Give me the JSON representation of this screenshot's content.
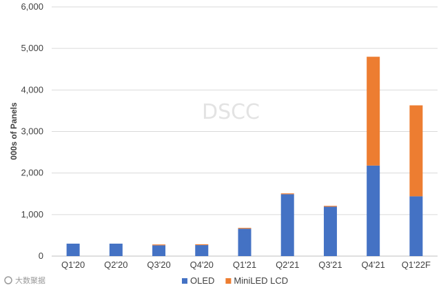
{
  "chart_data": {
    "type": "bar",
    "stacked": true,
    "categories": [
      "Q1'20",
      "Q2'20",
      "Q3'20",
      "Q4'20",
      "Q1'21",
      "Q2'21",
      "Q3'21",
      "Q4'21",
      "Q1'22F"
    ],
    "series": [
      {
        "name": "OLED",
        "color": "#4472c4",
        "values": [
          300,
          300,
          260,
          265,
          660,
          1490,
          1190,
          2180,
          1440
        ]
      },
      {
        "name": "MiniLED LCD",
        "color": "#ed7d31",
        "values": [
          0,
          0,
          20,
          20,
          20,
          20,
          20,
          2620,
          2190
        ]
      }
    ],
    "ylabel": "000s of Panels",
    "yticks": [
      "0",
      "1,000",
      "2,000",
      "3,000",
      "4,000",
      "5,000",
      "6,000"
    ],
    "ylim": [
      0,
      6000
    ],
    "grid": true,
    "legend": "bottom",
    "watermark": "DSCC"
  },
  "source_logo": "大数聚据"
}
